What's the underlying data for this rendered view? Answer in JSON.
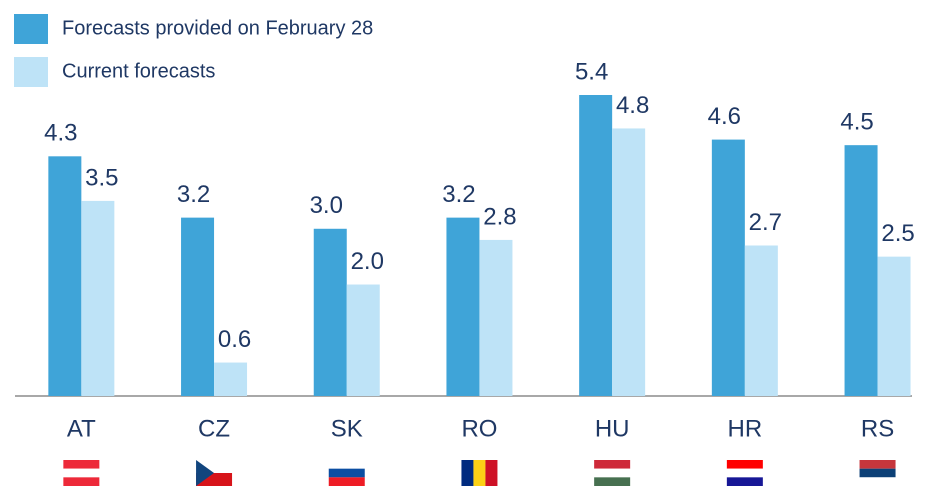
{
  "chart_data": {
    "type": "bar",
    "categories": [
      "AT",
      "CZ",
      "SK",
      "RO",
      "HU",
      "HR",
      "RS"
    ],
    "series": [
      {
        "name": "Forecasts provided on February 28",
        "color": "#3fa4d8",
        "values": [
          4.3,
          3.2,
          3.0,
          3.2,
          5.4,
          4.6,
          4.5
        ],
        "value_labels": [
          "4.3",
          "3.2",
          "3.0",
          "3.2",
          "5.4",
          "4.6",
          "4.5"
        ]
      },
      {
        "name": "Current forecasts",
        "color": "#bee3f7",
        "values": [
          3.5,
          0.6,
          2.0,
          2.8,
          4.8,
          2.7,
          2.5
        ],
        "value_labels": [
          "3.5",
          "0.6",
          "2.0",
          "2.8",
          "4.8",
          "2.7",
          "2.5"
        ]
      }
    ]
  }
}
